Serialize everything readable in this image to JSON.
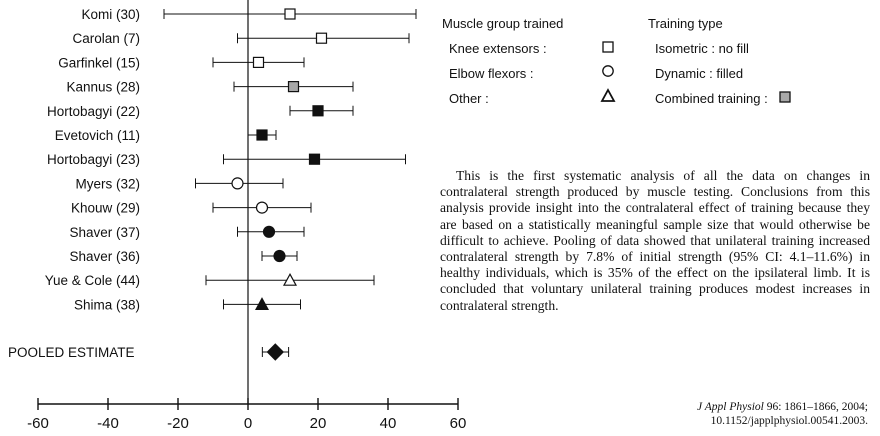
{
  "chart_data": {
    "type": "forest",
    "studies": [
      {
        "label": "Komi (30)",
        "estimate": 12,
        "ci": [
          -24,
          48
        ],
        "symbol": "square",
        "fill": "none"
      },
      {
        "label": "Carolan (7)",
        "estimate": 21,
        "ci": [
          -3,
          46
        ],
        "symbol": "square",
        "fill": "none"
      },
      {
        "label": "Garfinkel (15)",
        "estimate": 3,
        "ci": [
          -10,
          16
        ],
        "symbol": "square",
        "fill": "none"
      },
      {
        "label": "Kannus (28)",
        "estimate": 13,
        "ci": [
          -4,
          30
        ],
        "symbol": "square",
        "fill": "grey"
      },
      {
        "label": "Hortobagyi (22)",
        "estimate": 20,
        "ci": [
          12,
          30
        ],
        "symbol": "square",
        "fill": "black"
      },
      {
        "label": "Evetovich (11)",
        "estimate": 4,
        "ci": [
          0,
          8
        ],
        "symbol": "square",
        "fill": "black"
      },
      {
        "label": "Hortobagyi (23)",
        "estimate": 19,
        "ci": [
          -7,
          45
        ],
        "symbol": "square",
        "fill": "black"
      },
      {
        "label": "Myers (32)",
        "estimate": -3,
        "ci": [
          -15,
          10
        ],
        "symbol": "circle",
        "fill": "none"
      },
      {
        "label": "Khouw (29)",
        "estimate": 4,
        "ci": [
          -10,
          18
        ],
        "symbol": "circle",
        "fill": "none"
      },
      {
        "label": "Shaver (37)",
        "estimate": 6,
        "ci": [
          -3,
          16
        ],
        "symbol": "circle",
        "fill": "black"
      },
      {
        "label": "Shaver (36)",
        "estimate": 9,
        "ci": [
          4,
          14
        ],
        "symbol": "circle",
        "fill": "black"
      },
      {
        "label": "Yue & Cole (44)",
        "estimate": 12,
        "ci": [
          -12,
          36
        ],
        "symbol": "triangle",
        "fill": "none"
      },
      {
        "label": "Shima (38)",
        "estimate": 4,
        "ci": [
          -7,
          15
        ],
        "symbol": "triangle",
        "fill": "black"
      }
    ],
    "pooled": {
      "label": "POOLED ESTIMATE",
      "estimate": 7.8,
      "ci": [
        4.1,
        11.6
      ],
      "symbol": "diamond",
      "fill": "black"
    },
    "x_ticks": [
      -60,
      -40,
      -20,
      0,
      20,
      40,
      60
    ],
    "xlim": [
      -60,
      60
    ],
    "reference_line": 0,
    "grid": false,
    "legend_position": "top-right"
  },
  "legend": {
    "group_header": "Muscle group trained",
    "type_header": "Training type",
    "rows": [
      {
        "group": "Knee extensors :",
        "group_symbol": "square-open",
        "type": "Isometric : no fill"
      },
      {
        "group": "Elbow flexors :",
        "group_symbol": "circle-open",
        "type": "Dynamic : filled"
      },
      {
        "group": "Other :",
        "group_symbol": "triangle-open",
        "type": "Combined training :",
        "type_symbol": "square-grey"
      }
    ]
  },
  "abstract": "This is the first systematic analysis of all the data on changes in contralateral strength produced by muscle testing. Conclusions from this analysis provide insight into the contralateral effect of training because they are based on a statistically meaningful sample size that would otherwise be difficult to achieve. Pooling of data showed that unilateral training increased contralateral strength by 7.8% of initial strength (95% CI: 4.1–11.6%) in healthy individuals, which is 35% of the effect on the ipsilateral limb. It is concluded that voluntary unilateral training produces modest increases in contralateral strength.",
  "citation": {
    "journal": "J Appl Physiol",
    "details": " 96: 1861–1866, 2004;",
    "doi": "10.1152/japplphysiol.00541.2003."
  },
  "colors": {
    "ink": "#111111",
    "grey_fill": "#a8a8a8"
  }
}
